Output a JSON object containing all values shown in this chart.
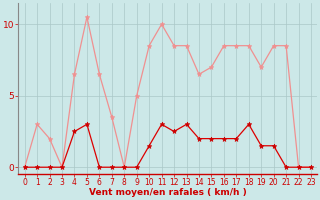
{
  "x": [
    0,
    1,
    2,
    3,
    4,
    5,
    6,
    7,
    8,
    9,
    10,
    11,
    12,
    13,
    14,
    15,
    16,
    17,
    18,
    19,
    20,
    21,
    22,
    23
  ],
  "y_light": [
    0,
    3,
    2,
    0,
    6.5,
    10.5,
    6.5,
    3.5,
    0,
    5,
    8.5,
    10,
    8.5,
    8.5,
    6.5,
    7,
    8.5,
    8.5,
    8.5,
    7,
    8.5,
    8.5,
    0,
    0
  ],
  "y_dark": [
    0,
    0,
    0,
    0,
    2.5,
    3,
    0,
    0,
    0,
    0,
    1.5,
    3,
    2.5,
    3,
    2,
    2,
    2,
    2,
    3,
    1.5,
    1.5,
    0,
    0,
    0
  ],
  "bg_color": "#cce8e8",
  "line_color_light": "#f09090",
  "line_color_dark": "#dd0000",
  "marker_color_light": "#f09090",
  "marker_color_dark": "#cc0000",
  "xlabel": "Vent moyen/en rafales ( km/h )",
  "yticks": [
    0,
    5,
    10
  ],
  "xticks": [
    0,
    1,
    2,
    3,
    4,
    5,
    6,
    7,
    8,
    9,
    10,
    11,
    12,
    13,
    14,
    15,
    16,
    17,
    18,
    19,
    20,
    21,
    22,
    23
  ],
  "ylim": [
    -0.5,
    11.5
  ],
  "xlim": [
    -0.5,
    23.5
  ],
  "grid_color": "#aac8c8",
  "axis_color": "#cc0000",
  "tick_color": "#cc0000",
  "label_fontsize": 6.5,
  "tick_fontsize": 5.5,
  "ytick_fontsize": 6.5
}
